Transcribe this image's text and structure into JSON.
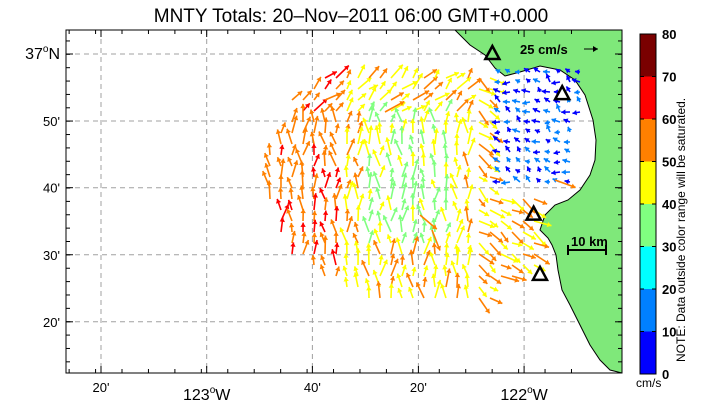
{
  "title": "MNTY Totals: 20–Nov–2011 06:00 GMT+0.000",
  "axes": {
    "x_ticks": [
      {
        "label": "20'",
        "lon": -123.333,
        "sup": "",
        "suffix": "",
        "major": false
      },
      {
        "label": "123",
        "lon": -123.0,
        "sup": "o",
        "suffix": "W",
        "major": true
      },
      {
        "label": "40'",
        "lon": -122.667,
        "sup": "",
        "suffix": "",
        "major": false
      },
      {
        "label": "20'",
        "lon": -122.333,
        "sup": "",
        "suffix": "",
        "major": false
      },
      {
        "label": "122",
        "lon": -122.0,
        "sup": "o",
        "suffix": "W",
        "major": true
      }
    ],
    "y_ticks": [
      {
        "label": "37",
        "lat": 37.0,
        "sup": "o",
        "suffix": "N",
        "major": true
      },
      {
        "label": "50'",
        "lat": 36.833,
        "sup": "",
        "suffix": "",
        "major": false
      },
      {
        "label": "40'",
        "lat": 36.667,
        "sup": "",
        "suffix": "",
        "major": false
      },
      {
        "label": "30'",
        "lat": 36.5,
        "sup": "",
        "suffix": "",
        "major": false
      },
      {
        "label": "20'",
        "lat": 36.333,
        "sup": "",
        "suffix": "",
        "major": false
      }
    ],
    "lon_range": [
      -123.6,
      -121.8
    ],
    "lat_range": [
      36.2,
      37.05
    ],
    "grid": true
  },
  "reference_vector": {
    "label": "25 cm/s",
    "speed": 25
  },
  "scale_bar": {
    "label": "10 km"
  },
  "colorbar": {
    "ticks": [
      "80",
      "70",
      "60",
      "50",
      "40",
      "30",
      "20",
      "10",
      "0"
    ],
    "colors": [
      "#7a0000",
      "#ff0000",
      "#ff8000",
      "#ffff00",
      "#80ff80",
      "#00ffff",
      "#0080ff",
      "#0000ff"
    ],
    "units": "cm/s",
    "note": "NOTE: Data outside color range will be saturated."
  },
  "colors": {
    "land": "#7fe87a",
    "coast": "#000000",
    "grid": "#a0a0a0"
  },
  "stations": [
    {
      "name": "station-marker",
      "lon": -122.1,
      "lat": 37.0
    },
    {
      "name": "station-marker",
      "lon": -121.88,
      "lat": 36.9
    },
    {
      "name": "station-marker",
      "lon": -121.97,
      "lat": 36.6
    },
    {
      "name": "station-marker",
      "lon": -121.95,
      "lat": 36.45
    }
  ]
}
